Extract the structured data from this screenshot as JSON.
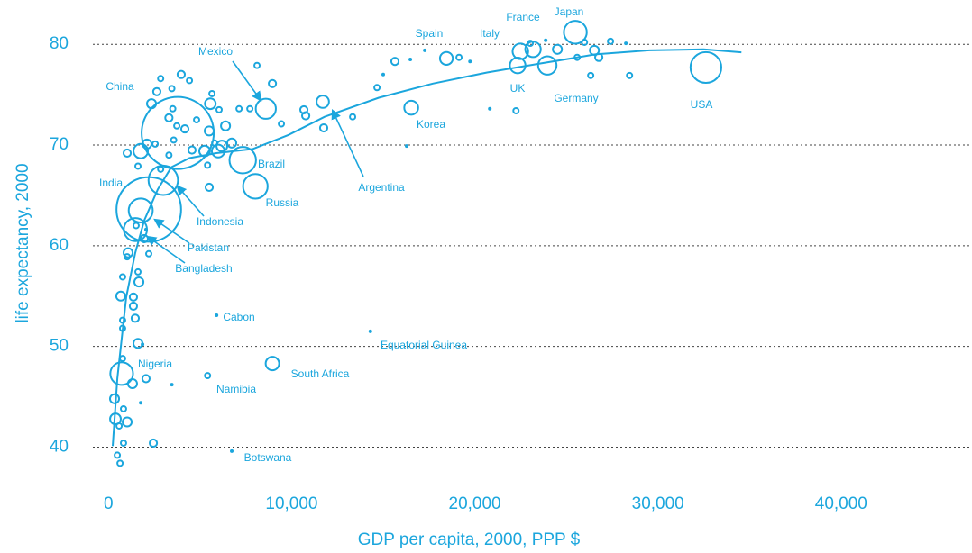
{
  "chart_data": {
    "type": "scatter",
    "xlabel": "GDP per capita, 2000, PPP $",
    "ylabel": "life expectancy, 2000",
    "color": "#1ba6dd",
    "grid": true,
    "xlim": [
      -1000,
      47000
    ],
    "xticks": [
      0,
      {
        "value": 10000,
        "label": "10,000"
      },
      {
        "value": 20000,
        "label": "20,000"
      },
      {
        "value": 30000,
        "label": "30,000"
      },
      {
        "value": 40000,
        "label": "40,000"
      }
    ],
    "ylim": [
      37,
      84.4
    ],
    "yticks": [
      40,
      50,
      60,
      70,
      80
    ],
    "labels": [
      "China",
      "India",
      "USA",
      "Japan",
      "Indonesia",
      "Pakistan",
      "Bangladesh",
      "Nigeria",
      "Brazil",
      "Russia",
      "Mexico",
      "Germany",
      "UK",
      "France",
      "Italy",
      "Spain",
      "Korea",
      "Argentina",
      "South Africa",
      "Cabon",
      "Equatorial Guinea",
      "Namibia",
      "Botswana",
      null,
      null,
      null,
      null,
      null,
      null,
      null,
      null,
      null,
      null,
      null,
      null,
      null,
      null,
      null,
      null,
      null,
      null,
      null,
      null,
      null,
      null,
      null,
      null,
      null,
      null,
      null,
      null,
      null,
      null,
      null,
      null,
      null,
      null,
      null,
      null,
      null,
      null,
      null,
      null,
      null,
      null,
      null,
      null,
      null,
      null,
      null,
      null,
      null,
      null,
      null,
      null,
      null,
      null,
      null,
      null,
      null,
      null,
      null,
      null,
      null,
      null,
      null,
      null,
      null,
      null,
      null,
      null,
      null,
      null,
      null,
      null,
      null,
      null,
      null,
      null,
      null,
      null,
      null,
      null,
      null,
      null,
      null,
      null,
      null,
      null,
      null,
      null
    ],
    "x": [
      3780,
      2200,
      32620,
      25490,
      2990,
      1760,
      1470,
      720,
      7330,
      8020,
      8590,
      23960,
      22340,
      22490,
      23180,
      18450,
      16530,
      11700,
      8950,
      5900,
      14300,
      5410,
      6730,
      2350,
      2640,
      2850,
      3460,
      3970,
      4420,
      3510,
      3300,
      3730,
      4170,
      4810,
      5560,
      5650,
      5500,
      6040,
      6390,
      6730,
      5990,
      5800,
      5250,
      4560,
      2550,
      2100,
      1760,
      1610,
      1020,
      3560,
      3300,
      2850,
      5500,
      5410,
      6190,
      7720,
      7130,
      8110,
      8950,
      9440,
      10670,
      10770,
      11750,
      13330,
      14660,
      15000,
      15640,
      16480,
      17270,
      19140,
      19740,
      20820,
      22250,
      23030,
      23870,
      24510,
      25590,
      25990,
      26530,
      26770,
      26330,
      27410,
      28250,
      28450,
      16280,
      1950,
      2200,
      1610,
      1660,
      1020,
      770,
      670,
      1360,
      1360,
      1460,
      770,
      770,
      1610,
      770,
      1310,
      2050,
      1760,
      330,
      820,
      380,
      1020,
      580,
      820,
      480,
      630,
      2450,
      3460,
      1860,
      1510,
      2050,
      1070
    ],
    "values": [
      71.2,
      63.6,
      77.7,
      81.2,
      66.5,
      63.5,
      61.6,
      47.3,
      68.5,
      65.9,
      73.6,
      77.9,
      77.9,
      79.3,
      79.5,
      78.6,
      73.7,
      74.3,
      48.3,
      53.1,
      51.5,
      47.1,
      39.6,
      74.1,
      75.3,
      76.6,
      75.6,
      77.0,
      76.4,
      73.6,
      72.7,
      71.9,
      71.6,
      72.5,
      74.1,
      75.1,
      71.4,
      73.5,
      71.9,
      70.2,
      69.4,
      70.2,
      69.4,
      69.5,
      70.1,
      70.1,
      69.4,
      67.9,
      69.2,
      70.5,
      69.0,
      67.6,
      65.8,
      68.0,
      69.9,
      73.6,
      73.6,
      77.9,
      76.1,
      72.1,
      73.5,
      72.9,
      71.7,
      72.8,
      75.7,
      77.0,
      78.3,
      78.5,
      79.4,
      78.7,
      78.3,
      73.6,
      73.4,
      80.1,
      80.4,
      79.5,
      78.7,
      80.2,
      79.4,
      78.7,
      76.9,
      80.3,
      80.1,
      76.9,
      69.9,
      60.7,
      59.2,
      57.4,
      56.4,
      58.9,
      56.9,
      55.0,
      54.9,
      54.0,
      52.8,
      52.6,
      51.8,
      50.3,
      48.8,
      46.3,
      46.8,
      44.4,
      44.8,
      43.8,
      42.8,
      42.5,
      42.1,
      40.4,
      39.2,
      38.4,
      40.4,
      46.2,
      50.2,
      62.0,
      61.6,
      59.3
    ],
    "sizes": [
      1260,
      1010,
      230,
      127,
      210,
      140,
      130,
      125,
      170,
      146,
      98,
      82,
      59,
      59,
      58,
      40,
      47,
      37,
      44,
      3,
      3,
      7,
      3,
      20,
      13,
      7,
      7,
      13,
      7,
      7,
      13,
      7,
      13,
      7,
      28,
      7,
      20,
      7,
      20,
      20,
      39,
      7,
      28,
      13,
      7,
      20,
      50,
      7,
      13,
      7,
      7,
      7,
      13,
      7,
      28,
      7,
      7,
      7,
      13,
      7,
      13,
      13,
      13,
      7,
      7,
      3,
      13,
      3,
      3,
      7,
      3,
      3,
      7,
      7,
      3,
      20,
      7,
      7,
      20,
      13,
      7,
      7,
      3,
      7,
      3,
      13,
      7,
      7,
      20,
      7,
      7,
      20,
      13,
      13,
      13,
      7,
      7,
      20,
      7,
      20,
      13,
      3,
      20,
      7,
      28,
      20,
      7,
      7,
      7,
      7,
      13,
      3,
      3,
      7,
      3,
      20
    ],
    "trend": {
      "x": [
        230,
        480,
        970,
        1460,
        1950,
        2690,
        3430,
        4420,
        5890,
        7860,
        9830,
        11800,
        14760,
        17710,
        20670,
        23620,
        26580,
        29530,
        32490,
        34560
      ],
      "values": [
        40.1,
        46.8,
        54.9,
        59.3,
        62.5,
        65.6,
        67.8,
        68.7,
        69.2,
        69.6,
        71.0,
        72.8,
        74.7,
        76.1,
        77.2,
        78.1,
        79.0,
        79.4,
        79.5,
        79.2
      ]
    }
  }
}
